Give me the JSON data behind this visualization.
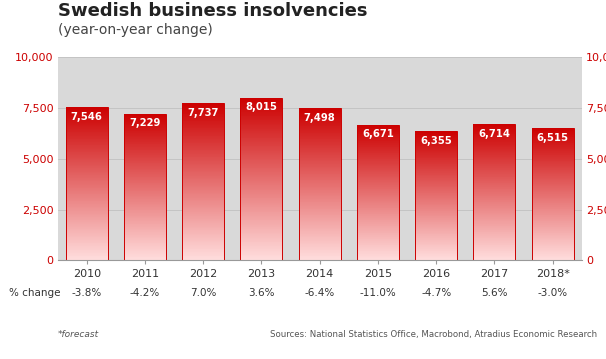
{
  "title": "Swedish business insolvencies",
  "subtitle": "(year-on-year change)",
  "categories": [
    "2010",
    "2011",
    "2012",
    "2013",
    "2014",
    "2015",
    "2016",
    "2017",
    "2018*"
  ],
  "values": [
    7546,
    7229,
    7737,
    8015,
    7498,
    6671,
    6355,
    6714,
    6515
  ],
  "pct_changes": [
    "-3.8%",
    "-4.2%",
    "7.0%",
    "3.6%",
    "-6.4%",
    "-11.0%",
    "-4.7%",
    "5.6%",
    "-3.0%"
  ],
  "bar_color_top": "#cc0000",
  "bar_color_bottom": "#ffdddd",
  "bar_edge_color": "#cc0000",
  "ylim": [
    0,
    10000
  ],
  "yticks": [
    0,
    2500,
    5000,
    7500,
    10000
  ],
  "plot_bg_color": "#d9d9d9",
  "fig_bg_color": "#ffffff",
  "title_fontsize": 13,
  "subtitle_fontsize": 10,
  "footnote_left": "*forecast",
  "footnote_right": "Sources: National Statistics Office, Macrobond, Atradius Economic Research",
  "bar_label_color": "#ffffff",
  "axis_label_color": "#cc0000",
  "pct_label_color": "#333333",
  "grid_color": "#bbbbbb"
}
